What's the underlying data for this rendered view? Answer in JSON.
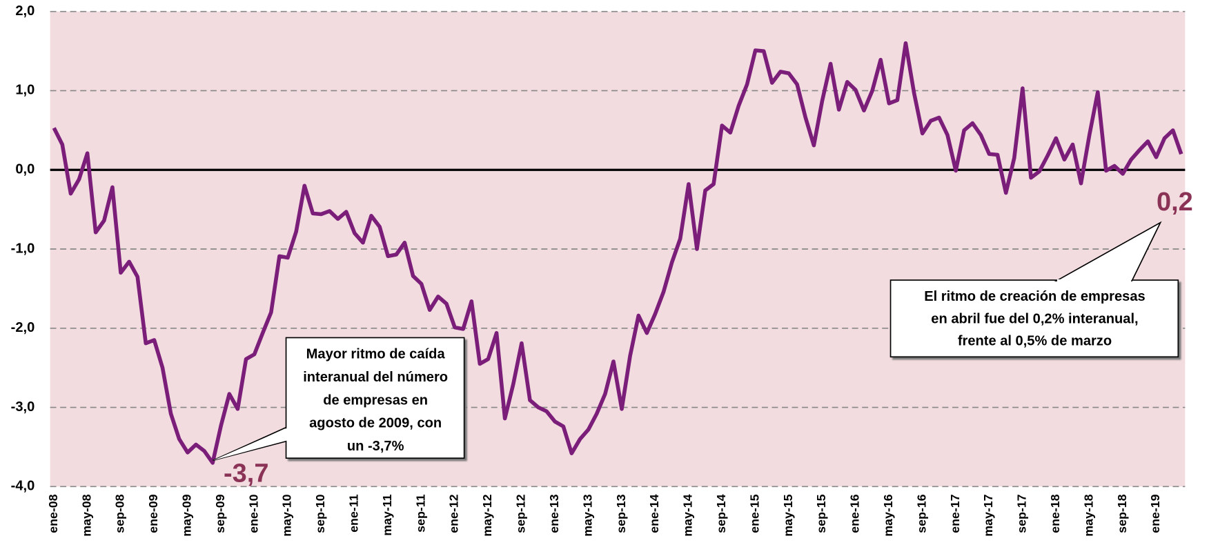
{
  "chart_data": {
    "type": "line",
    "color": "#7b1e7a",
    "grid": true,
    "ylim": [
      -4,
      2
    ],
    "yticks": [
      {
        "value": -4,
        "label": "-4,0"
      },
      {
        "value": -3,
        "label": "-3,0"
      },
      {
        "value": -2,
        "label": "-2,0"
      },
      {
        "value": -1,
        "label": "-1,0"
      },
      {
        "value": 0,
        "label": "0,0"
      },
      {
        "value": 1,
        "label": "1,0"
      },
      {
        "value": 2,
        "label": "2,0"
      }
    ],
    "categories": [
      "ene-08",
      null,
      null,
      null,
      "may-08",
      null,
      null,
      null,
      "sep-08",
      null,
      null,
      null,
      "ene-09",
      null,
      null,
      null,
      "may-09",
      null,
      null,
      null,
      "sep-09",
      null,
      null,
      null,
      "ene-10",
      null,
      null,
      null,
      "may-10",
      null,
      null,
      null,
      "sep-10",
      null,
      null,
      null,
      "ene-11",
      null,
      null,
      null,
      "may-11",
      null,
      null,
      null,
      "sep-11",
      null,
      null,
      null,
      "ene-12",
      null,
      null,
      null,
      "may-12",
      null,
      null,
      null,
      "sep-12",
      null,
      null,
      null,
      "ene-13",
      null,
      null,
      null,
      "may-13",
      null,
      null,
      null,
      "sep-13",
      null,
      null,
      null,
      "ene-14",
      null,
      null,
      null,
      "may-14",
      null,
      null,
      null,
      "sep-14",
      null,
      null,
      null,
      "ene-15",
      null,
      null,
      null,
      "may-15",
      null,
      null,
      null,
      "sep-15",
      null,
      null,
      null,
      "ene-16",
      null,
      null,
      null,
      "may-16",
      null,
      null,
      null,
      "sep-16",
      null,
      null,
      null,
      "ene-17",
      null,
      null,
      null,
      "may-17",
      null,
      null,
      null,
      "sep-17",
      null,
      null,
      null,
      "ene-18",
      null,
      null,
      null,
      "may-18",
      null,
      null,
      null,
      "sep-18",
      null,
      null,
      null,
      "ene-19",
      null,
      null,
      null
    ],
    "values": [
      0.53,
      0.32,
      -0.3,
      -0.12,
      0.21,
      -0.79,
      -0.64,
      -0.22,
      -1.3,
      -1.16,
      -1.35,
      -2.19,
      -2.15,
      -2.5,
      -3.08,
      -3.4,
      -3.57,
      -3.47,
      -3.55,
      -3.7,
      -3.23,
      -2.83,
      -3.02,
      -2.39,
      -2.33,
      -2.06,
      -1.8,
      -1.09,
      -1.11,
      -0.78,
      -0.2,
      -0.55,
      -0.56,
      -0.52,
      -0.62,
      -0.53,
      -0.8,
      -0.92,
      -0.58,
      -0.72,
      -1.09,
      -1.07,
      -0.92,
      -1.34,
      -1.44,
      -1.77,
      -1.6,
      -1.69,
      -1.99,
      -2.01,
      -1.66,
      -2.45,
      -2.39,
      -2.06,
      -3.14,
      -2.71,
      -2.19,
      -2.91,
      -3.0,
      -3.05,
      -3.18,
      -3.24,
      -3.58,
      -3.4,
      -3.28,
      -3.08,
      -2.83,
      -2.42,
      -3.02,
      -2.35,
      -1.84,
      -2.06,
      -1.82,
      -1.54,
      -1.17,
      -0.87,
      -0.18,
      -1.0,
      -0.26,
      -0.18,
      0.56,
      0.47,
      0.81,
      1.08,
      1.51,
      1.5,
      1.1,
      1.24,
      1.22,
      1.08,
      0.66,
      0.31,
      0.87,
      1.34,
      0.76,
      1.11,
      1.01,
      0.75,
      1.0,
      1.39,
      0.84,
      0.88,
      1.6,
      0.97,
      0.46,
      0.62,
      0.66,
      0.44,
      -0.01,
      0.5,
      0.59,
      0.44,
      0.2,
      0.19,
      -0.29,
      0.15,
      1.03,
      -0.1,
      -0.02,
      0.18,
      0.4,
      0.13,
      0.32,
      -0.17,
      0.44,
      0.98,
      -0.01,
      0.05,
      -0.05,
      0.13,
      0.25,
      0.36,
      0.16,
      0.4,
      0.5,
      0.2
    ],
    "annotations": [
      {
        "text": "-3,7"
      },
      {
        "text": "0,2"
      },
      {
        "lines": [
          "Mayor ritmo de caída",
          "interanual del número",
          "de empresas  en",
          "agosto de 2009, con",
          "un -3,7%"
        ]
      },
      {
        "lines": [
          "El ritmo de creación de empresas",
          "en abril fue del 0,2% interanual,",
          "frente al 0,5% de marzo"
        ]
      }
    ]
  }
}
